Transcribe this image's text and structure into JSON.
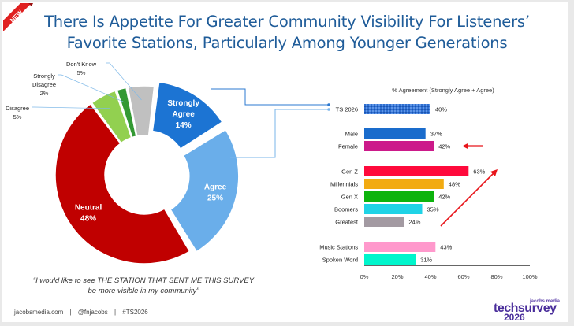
{
  "badge": "NEW",
  "title_line1": "There Is Appetite For Greater Community Visibility For Listeners’",
  "title_line2": "Favorite Stations, Particularly Among Younger Generations",
  "quote_line1": "“I would like to see THE STATION THAT SENT ME THIS SURVEY",
  "quote_line2": "be more visible in my community”",
  "footer": [
    "jacobsmedia.com",
    "|",
    "@fnjacobs",
    "|",
    "#TS2026"
  ],
  "logo": {
    "small": "jacobs media",
    "brand": "techsurvey",
    "year": "2026"
  },
  "colors": {
    "title": "#1f5c99",
    "arrow": "#e8141a"
  },
  "chart_data": [
    {
      "type": "pie",
      "donut": true,
      "title": "",
      "slices": [
        {
          "label": "Strongly Agree",
          "value": 14,
          "display": "14%",
          "color": "#1c74d3",
          "exploded": true
        },
        {
          "label": "Agree",
          "value": 25,
          "display": "25%",
          "color": "#6aaeea",
          "exploded": true
        },
        {
          "label": "Neutral",
          "value": 48,
          "display": "48%",
          "color": "#c00000",
          "exploded": false
        },
        {
          "label": "Disagree",
          "value": 5,
          "display": "5%",
          "color": "#92d050",
          "exploded": false
        },
        {
          "label": "Strongly Disagree",
          "value": 2,
          "display": "2%",
          "color": "#339933",
          "exploded": false
        },
        {
          "label": "Don't Know",
          "value": 5,
          "display": "5%",
          "color": "#c0c0c0",
          "exploded": false
        }
      ]
    },
    {
      "type": "bar",
      "orientation": "horizontal",
      "title": "% Agreement (Strongly Agree + Agree)",
      "xlim": [
        0,
        100
      ],
      "xticks": [
        "0%",
        "20%",
        "40%",
        "60%",
        "80%",
        "100%"
      ],
      "groups": [
        {
          "bars": [
            {
              "label": "TS 2026",
              "value": 40,
              "display": "40%",
              "color": "#2f6fd0",
              "pattern": true
            }
          ]
        },
        {
          "bars": [
            {
              "label": "Male",
              "value": 37,
              "display": "37%",
              "color": "#1a6ccc"
            },
            {
              "label": "Female",
              "value": 42,
              "display": "42%",
              "color": "#cc1a8a",
              "highlight_arrow": true
            }
          ]
        },
        {
          "bars": [
            {
              "label": "Gen Z",
              "value": 63,
              "display": "63%",
              "color": "#ff0a3c"
            },
            {
              "label": "Millennials",
              "value": 48,
              "display": "48%",
              "color": "#f2ab12"
            },
            {
              "label": "Gen X",
              "value": 42,
              "display": "42%",
              "color": "#0db30d"
            },
            {
              "label": "Boomers",
              "value": 35,
              "display": "35%",
              "color": "#1fd3e6"
            },
            {
              "label": "Greatest",
              "value": 24,
              "display": "24%",
              "color": "#a39aa2"
            }
          ]
        },
        {
          "bars": [
            {
              "label": "Music Stations",
              "value": 43,
              "display": "43%",
              "color": "#ff99cc"
            },
            {
              "label": "Spoken Word",
              "value": 31,
              "display": "31%",
              "color": "#00f5cc"
            }
          ]
        }
      ]
    }
  ]
}
